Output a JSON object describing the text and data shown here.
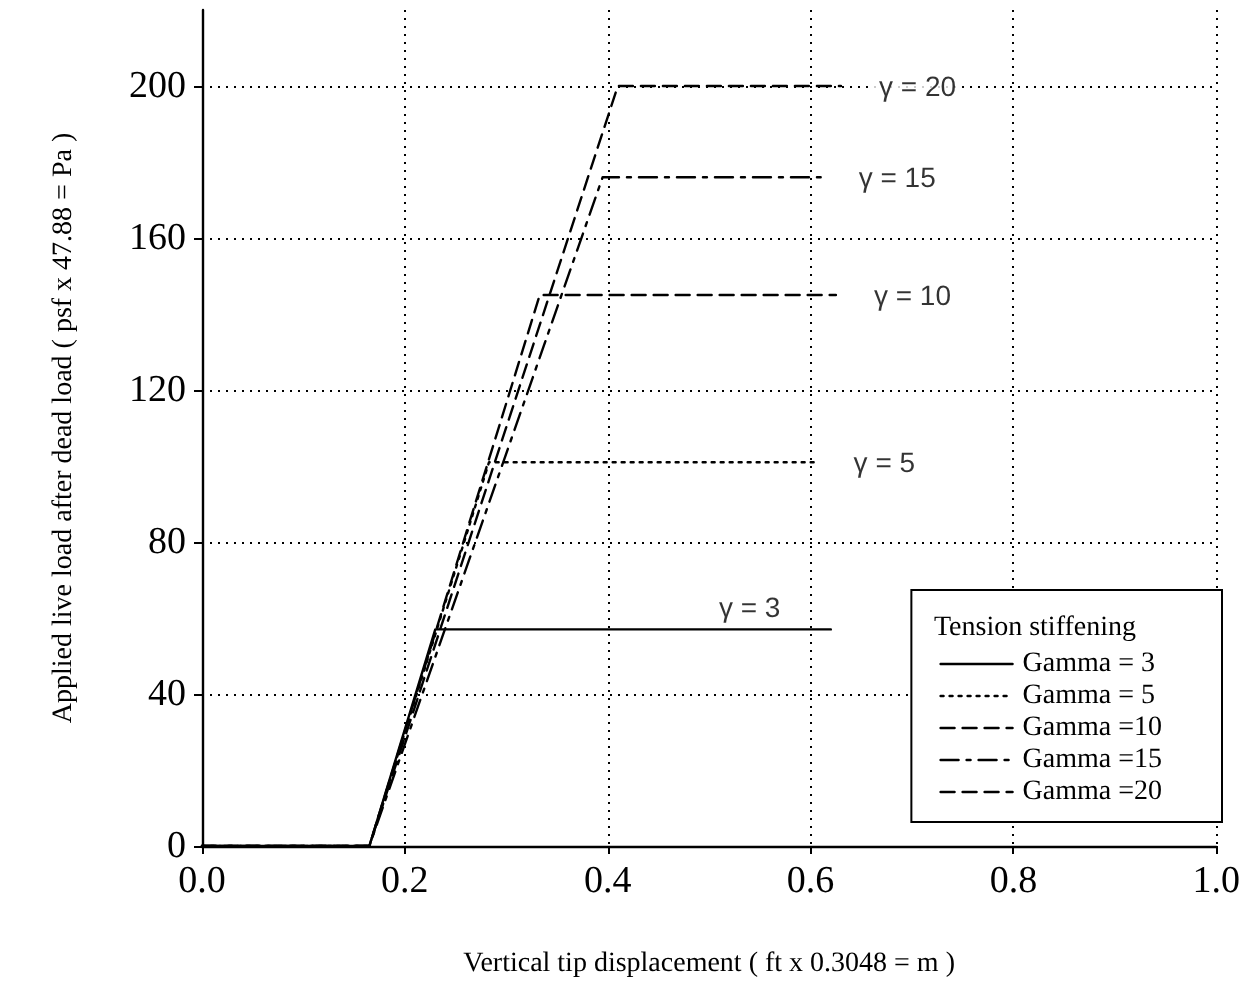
{
  "chart_data": {
    "type": "line",
    "xlabel": "Vertical tip displacement ( ft x 0.3048 = m )",
    "ylabel": "Applied live load after dead load ( psf x 47.88 = Pa )",
    "legend_title": "Tension stiffening",
    "xlim": [
      0,
      1
    ],
    "xticks": [
      {
        "value": 0,
        "label": "0.0"
      },
      {
        "value": 0.2,
        "label": "0.2"
      },
      {
        "value": 0.4,
        "label": "0.4"
      },
      {
        "value": 0.6,
        "label": "0.6"
      },
      {
        "value": 0.8,
        "label": "0.8"
      },
      {
        "value": 1,
        "label": "1.0"
      }
    ],
    "ylim": [
      0,
      220
    ],
    "yticks": [
      0,
      40,
      80,
      120,
      160,
      200
    ],
    "series": [
      {
        "name": "Gamma = 3",
        "color": "#000000",
        "line_style": "solid",
        "x": [
          0,
          0.165,
          0.23,
          0.62
        ],
        "values": [
          0,
          0,
          57,
          57
        ]
      },
      {
        "name": "Gamma = 5",
        "color": "#000000",
        "line_style": "dotted",
        "x": [
          0,
          0.165,
          0.283,
          0.605
        ],
        "values": [
          0,
          0,
          101,
          101
        ]
      },
      {
        "name": "Gamma =10",
        "color": "#000000",
        "line_style": "dashed",
        "x": [
          0,
          0.165,
          0.333,
          0.625
        ],
        "values": [
          0,
          0,
          145,
          145
        ]
      },
      {
        "name": "Gamma =15",
        "color": "#000000",
        "line_style": "dashdot",
        "x": [
          0,
          0.165,
          0.395,
          0.61
        ],
        "values": [
          0,
          0,
          176,
          176
        ]
      },
      {
        "name": "Gamma =20",
        "color": "#000000",
        "line_style": "dashed",
        "x": [
          0,
          0.165,
          0.41,
          0.63
        ],
        "values": [
          0,
          0,
          200,
          200
        ]
      }
    ],
    "annotations": [
      {
        "text": "γ = 20",
        "x": 0.63,
        "y": 200
      },
      {
        "text": "γ = 15",
        "x": 0.61,
        "y": 176
      },
      {
        "text": "γ = 10",
        "x": 0.625,
        "y": 145
      },
      {
        "text": "γ = 5",
        "x": 0.605,
        "y": 101
      },
      {
        "text": "γ = 3",
        "x": 0.54,
        "y": 57
      }
    ],
    "grid": true,
    "legend": "bottom right",
    "marker": "none"
  }
}
